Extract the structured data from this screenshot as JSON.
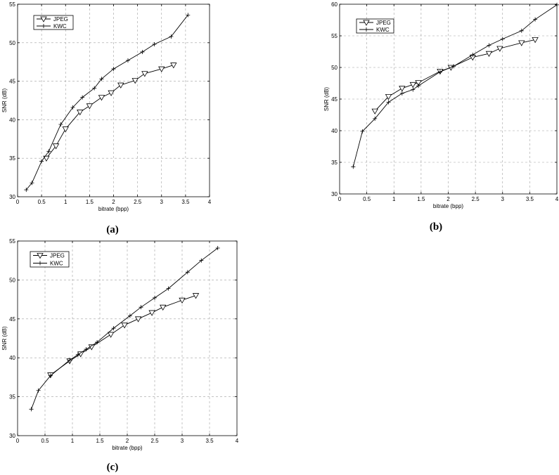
{
  "chart_data": [
    {
      "type": "line",
      "caption": "(a)",
      "xlabel": "bitrate (bpp)",
      "ylabel": "SNR (dB)",
      "xlim": [
        0,
        4
      ],
      "ylim": [
        30,
        55
      ],
      "xticks": [
        "0",
        "0.5",
        "1",
        "1.5",
        "2",
        "2.5",
        "3",
        "3.5",
        "4"
      ],
      "yticks": [
        "30",
        "35",
        "40",
        "45",
        "50",
        "55"
      ],
      "grid": true,
      "legend": "top-left",
      "series": [
        {
          "name": "JPEG",
          "marker": "triangle-down",
          "x": [
            0.6,
            0.8,
            1.0,
            1.3,
            1.5,
            1.75,
            1.95,
            2.15,
            2.45,
            2.65,
            3.0,
            3.25
          ],
          "y": [
            35.0,
            36.6,
            38.8,
            41.0,
            41.8,
            42.9,
            43.5,
            44.5,
            45.1,
            46.0,
            46.6,
            47.1
          ]
        },
        {
          "name": "KWC",
          "marker": "plus",
          "x": [
            0.18,
            0.3,
            0.5,
            0.65,
            0.9,
            1.15,
            1.35,
            1.6,
            1.75,
            2.0,
            2.3,
            2.6,
            2.85,
            3.2,
            3.55
          ],
          "y": [
            30.9,
            31.8,
            34.6,
            35.9,
            39.4,
            41.6,
            42.9,
            44.1,
            45.3,
            46.6,
            47.7,
            48.8,
            49.8,
            50.8,
            53.6
          ]
        }
      ]
    },
    {
      "type": "line",
      "caption": "(b)",
      "xlabel": "bitrate (bpp)",
      "ylabel": "SNR (dB)",
      "xlim": [
        0,
        4
      ],
      "ylim": [
        30,
        60
      ],
      "xticks": [
        "0",
        "0.5",
        "1",
        "1.5",
        "2",
        "2.5",
        "3",
        "3.5",
        "4"
      ],
      "yticks": [
        "30",
        "35",
        "40",
        "45",
        "50",
        "55",
        "60"
      ],
      "grid": true,
      "legend": "top-left",
      "series": [
        {
          "name": "JPEG",
          "marker": "triangle-down",
          "x": [
            0.65,
            0.9,
            1.15,
            1.35,
            1.45,
            1.85,
            2.05,
            2.45,
            2.75,
            2.95,
            3.35,
            3.6
          ],
          "y": [
            43.1,
            45.4,
            46.7,
            47.3,
            47.6,
            49.4,
            50.0,
            51.6,
            52.2,
            53.0,
            53.9,
            54.4
          ]
        },
        {
          "name": "KWC",
          "marker": "plus",
          "x": [
            0.25,
            0.42,
            0.65,
            0.9,
            1.15,
            1.35,
            1.45,
            1.85,
            2.1,
            2.45,
            2.75,
            3.0,
            3.35,
            3.6,
            4.0
          ],
          "y": [
            34.3,
            39.9,
            41.9,
            44.5,
            45.9,
            46.5,
            47.1,
            49.3,
            50.2,
            52.0,
            53.5,
            54.5,
            55.8,
            57.6,
            59.9
          ]
        }
      ]
    },
    {
      "type": "line",
      "caption": "(c)",
      "xlabel": "bitrate (bpp)",
      "ylabel": "SNR (dB)",
      "xlim": [
        0,
        4
      ],
      "ylim": [
        30,
        55
      ],
      "xticks": [
        "0",
        "0.5",
        "1",
        "1.5",
        "2",
        "2.5",
        "3",
        "3.5",
        "4"
      ],
      "yticks": [
        "30",
        "35",
        "40",
        "45",
        "50",
        "55"
      ],
      "grid": true,
      "legend": "top-left",
      "series": [
        {
          "name": "JPEG",
          "marker": "triangle-down",
          "x": [
            0.6,
            0.95,
            1.15,
            1.35,
            1.7,
            1.95,
            2.2,
            2.45,
            2.65,
            3.0,
            3.25
          ],
          "y": [
            37.8,
            39.6,
            40.5,
            41.4,
            43.0,
            44.2,
            45.0,
            45.8,
            46.5,
            47.4,
            48.0
          ],
          "bind": "jpeg"
        },
        {
          "name": "KWC",
          "marker": "plus",
          "x": [
            0.25,
            0.38,
            0.6,
            0.95,
            1.1,
            1.25,
            1.45,
            1.75,
            2.05,
            2.25,
            2.5,
            2.75,
            3.1,
            3.35,
            3.65
          ],
          "y": [
            33.4,
            35.8,
            37.7,
            39.7,
            40.4,
            41.1,
            42.0,
            43.8,
            45.4,
            46.5,
            47.7,
            48.9,
            51.0,
            52.5,
            54.1
          ]
        }
      ]
    }
  ]
}
